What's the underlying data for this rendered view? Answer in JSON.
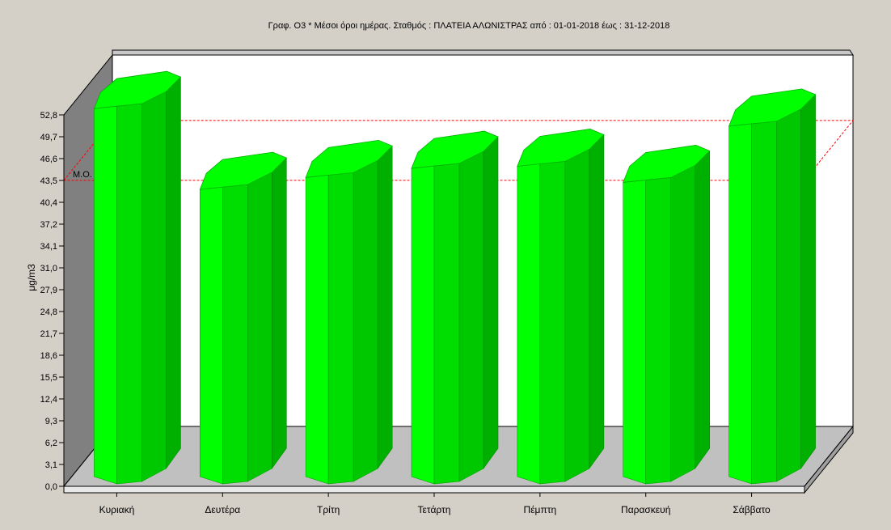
{
  "chart_data": {
    "type": "bar",
    "title": "Γραφ. O3 * Μέσοι όροι ημέρας. Σταθμός : ΠΛΑΤΕΙΑ ΑΛΩΝΙΣΤΡΑΣ από : 01-01-2018   έως : 31-12-2018",
    "xlabel": "",
    "ylabel": "μg/m3",
    "ylim": [
      0,
      52.8
    ],
    "yticks": [
      "0,0",
      "3,1",
      "6,2",
      "9,3",
      "12,4",
      "15,5",
      "18,6",
      "21,7",
      "24,8",
      "27,9",
      "31,0",
      "34,1",
      "37,2",
      "40,4",
      "43,5",
      "46,6",
      "49,7",
      "52,8"
    ],
    "categories": [
      "Κυριακή",
      "Δευτέρα",
      "Τρίτη",
      "Τετάρτη",
      "Πέμπτη",
      "Παρασκευή",
      "Σάββατο"
    ],
    "values": [
      53.7,
      42.2,
      43.9,
      45.2,
      45.5,
      43.2,
      51.2
    ],
    "mean_line": {
      "label": "Μ.Ο.",
      "value": 43.5
    },
    "colors": {
      "bar_front": "#00ff00",
      "bar_mid": "#00dd00",
      "bar_side": "#00b000",
      "bar_top": "#00ff00",
      "mean_line": "#ff0000",
      "back_wall": "#ffffff",
      "left_wall": "#808080",
      "floor": "#c0c0c0",
      "background": "#d4d0c8"
    },
    "grid": false,
    "legend": "none"
  }
}
